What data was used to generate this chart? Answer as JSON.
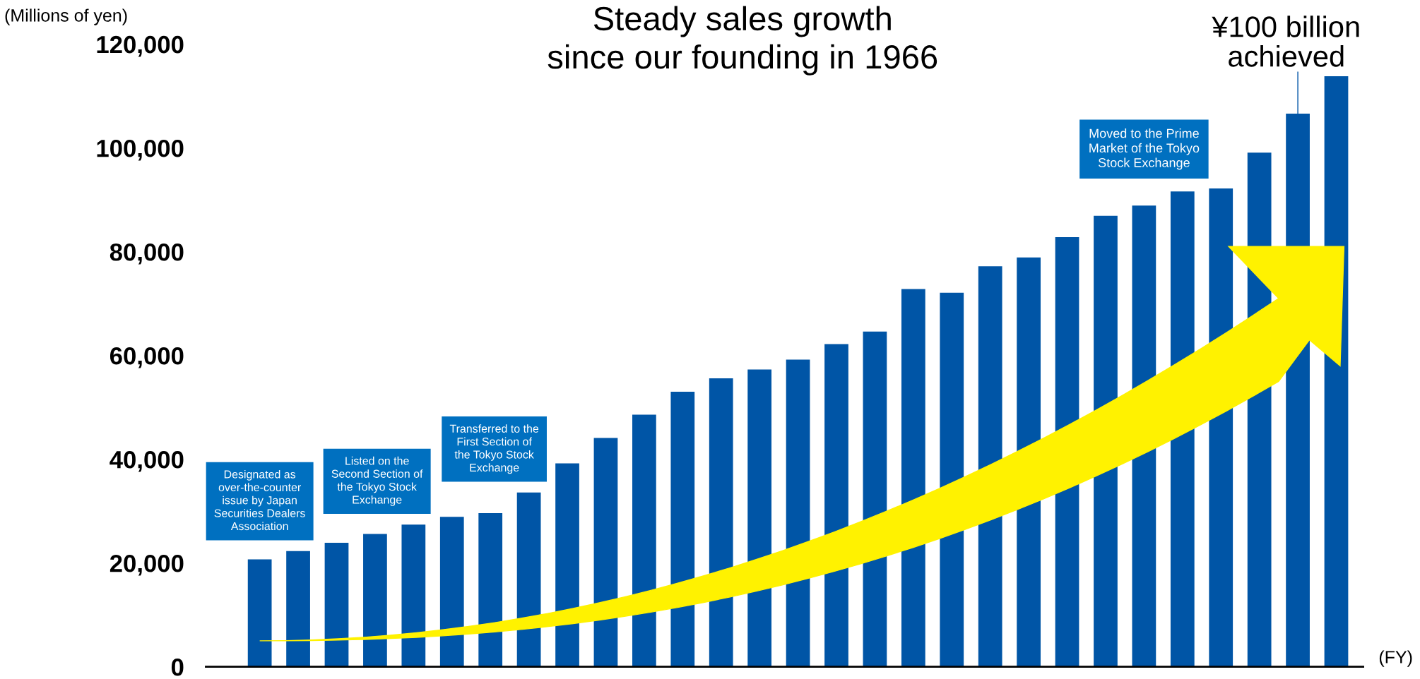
{
  "chart_data": {
    "type": "bar",
    "title": "Steady sales growth\nsince our founding in 1966",
    "ylabel": "(Millions of yen)",
    "xlabel": "(FY)",
    "categories": [
      null,
      null,
      null,
      null,
      null,
      null,
      null,
      null,
      null,
      null,
      null,
      null,
      null,
      null,
      null,
      null,
      null,
      null,
      null,
      null,
      null,
      null,
      null,
      null,
      null,
      null,
      null,
      null,
      null
    ],
    "values": [
      20700,
      22300,
      23900,
      25600,
      27400,
      28900,
      29600,
      33600,
      39200,
      44100,
      48600,
      53000,
      55600,
      57300,
      59200,
      62200,
      64600,
      72800,
      72100,
      77200,
      78900,
      82800,
      86900,
      88900,
      91600,
      92200,
      99100,
      106600,
      113800
    ],
    "color": "#0055a6",
    "ylim": [
      0,
      120000
    ],
    "yticks": [
      {
        "value": 0,
        "label": "0"
      },
      {
        "value": 20000,
        "label": "20,000"
      },
      {
        "value": 40000,
        "label": "40,000"
      },
      {
        "value": 60000,
        "label": "60,000"
      },
      {
        "value": 80000,
        "label": "80,000"
      },
      {
        "value": 100000,
        "label": "100,000"
      },
      {
        "value": 120000,
        "label": "120,000"
      }
    ],
    "grid": false,
    "annotations": [
      "Designated as\nover-the-counter\nissue by Japan\nSecurities Dealers\nAssociation",
      "Listed on the\nSecond Section of\nthe Tokyo Stock\nExchange",
      "Transferred to the\nFirst Section of\nthe Tokyo Stock\nExchange",
      "Moved to the Prime\nMarket of the Tokyo\nStock Exchange",
      "¥100 billion\nachieved"
    ]
  }
}
